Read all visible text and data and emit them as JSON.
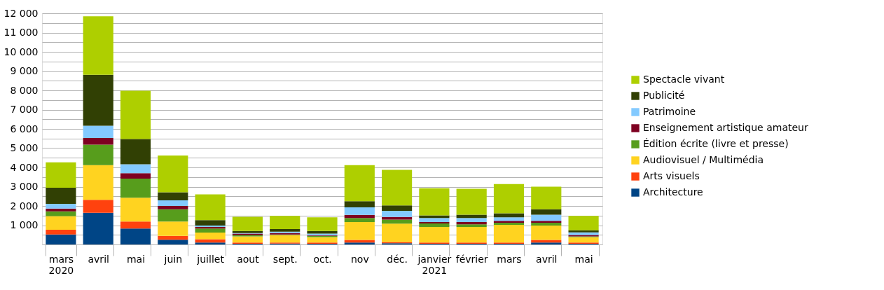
{
  "chart_data": {
    "type": "bar",
    "stacked": true,
    "categories": [
      "mars\n2020",
      "avril",
      "mai",
      "juin",
      "juillet",
      "aout",
      "sept.",
      "oct.",
      "nov",
      "déc.",
      "janvier\n2021",
      "février",
      "mars",
      "avril",
      "mai"
    ],
    "series": [
      {
        "name": "Architecture",
        "color": "#004586",
        "values": [
          520,
          1650,
          830,
          250,
          100,
          40,
          50,
          40,
          100,
          60,
          40,
          40,
          40,
          100,
          40
        ]
      },
      {
        "name": "Arts visuels",
        "color": "#ff420e",
        "values": [
          240,
          670,
          360,
          200,
          170,
          60,
          50,
          60,
          140,
          70,
          60,
          60,
          60,
          140,
          60
        ]
      },
      {
        "name": "Audiovisuel / Multimédia",
        "color": "#ffd320",
        "values": [
          710,
          1800,
          1240,
          740,
          350,
          320,
          390,
          280,
          920,
          950,
          810,
          810,
          920,
          740,
          280
        ]
      },
      {
        "name": "Édition écrite (livre et presse)",
        "color": "#579d1c",
        "values": [
          250,
          1060,
          990,
          640,
          210,
          70,
          30,
          70,
          210,
          210,
          180,
          140,
          110,
          150,
          40
        ]
      },
      {
        "name": "Enseignement artistique amateur",
        "color": "#7e0021",
        "values": [
          140,
          350,
          280,
          170,
          80,
          70,
          70,
          20,
          170,
          140,
          70,
          110,
          100,
          100,
          70
        ]
      },
      {
        "name": "Patrimoine",
        "color": "#83caff",
        "values": [
          250,
          630,
          460,
          290,
          70,
          30,
          70,
          90,
          390,
          320,
          210,
          210,
          180,
          320,
          140
        ]
      },
      {
        "name": "Publicité",
        "color": "#314004",
        "values": [
          840,
          2650,
          1310,
          420,
          280,
          110,
          140,
          140,
          320,
          280,
          140,
          180,
          210,
          280,
          110
        ]
      },
      {
        "name": "Spectacle vivant",
        "color": "#aecf00",
        "values": [
          1310,
          3040,
          2510,
          1910,
          1340,
          740,
          680,
          710,
          1870,
          1840,
          1410,
          1340,
          1520,
          1170,
          740
        ]
      }
    ],
    "ylim": [
      0,
      12000
    ],
    "yticks": [
      {
        "value": 500,
        "label": null
      },
      {
        "value": 1000,
        "label": "1 000"
      },
      {
        "value": 1500,
        "label": null
      },
      {
        "value": 2000,
        "label": "2 000"
      },
      {
        "value": 2500,
        "label": null
      },
      {
        "value": 3000,
        "label": "3 000"
      },
      {
        "value": 3500,
        "label": null
      },
      {
        "value": 4000,
        "label": "4 000"
      },
      {
        "value": 4500,
        "label": null
      },
      {
        "value": 5000,
        "label": "5 000"
      },
      {
        "value": 5500,
        "label": null
      },
      {
        "value": 6000,
        "label": "6 000"
      },
      {
        "value": 6500,
        "label": null
      },
      {
        "value": 7000,
        "label": "7 000"
      },
      {
        "value": 7500,
        "label": null
      },
      {
        "value": 8000,
        "label": "8 000"
      },
      {
        "value": 8500,
        "label": null
      },
      {
        "value": 9000,
        "label": "9 000"
      },
      {
        "value": 9500,
        "label": null
      },
      {
        "value": 10000,
        "label": "10 000"
      },
      {
        "value": 10500,
        "label": null
      },
      {
        "value": 11000,
        "label": "11 000"
      },
      {
        "value": 11500,
        "label": null
      },
      {
        "value": 12000,
        "label": "12 000"
      }
    ],
    "grid": "y",
    "legend": "right"
  }
}
